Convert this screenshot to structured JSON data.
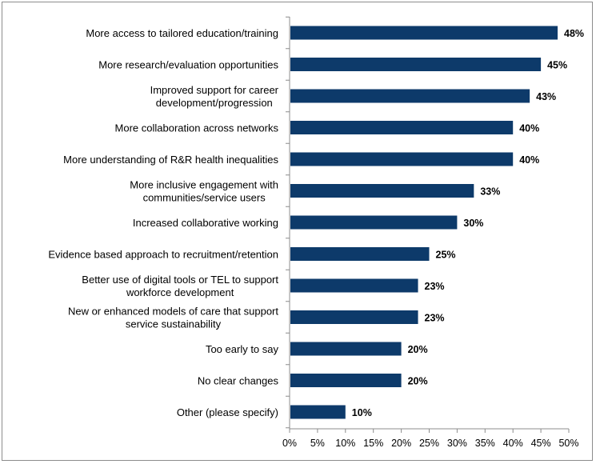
{
  "chart_data": {
    "type": "bar",
    "orientation": "horizontal",
    "categories": [
      [
        "More access to tailored education/training"
      ],
      [
        "More research/evaluation opportunities"
      ],
      [
        "Improved support for career",
        "development/progression"
      ],
      [
        "More collaboration across networks"
      ],
      [
        "More understanding of R&R health inequalities"
      ],
      [
        "More inclusive engagement with",
        "communities/service users"
      ],
      [
        "Increased collaborative working"
      ],
      [
        "Evidence based approach to recruitment/retention"
      ],
      [
        "Better use of digital tools or TEL to support",
        "workforce development"
      ],
      [
        "New or enhanced models of care that support",
        "service sustainability"
      ],
      [
        "Too early to say"
      ],
      [
        "No clear changes"
      ],
      [
        "Other (please specify)"
      ]
    ],
    "values": [
      48,
      45,
      43,
      40,
      40,
      33,
      30,
      25,
      23,
      23,
      20,
      20,
      10
    ],
    "value_labels": [
      "48%",
      "45%",
      "43%",
      "40%",
      "40%",
      "33%",
      "30%",
      "25%",
      "23%",
      "23%",
      "20%",
      "20%",
      "10%"
    ],
    "x_ticks": [
      "0%",
      "5%",
      "10%",
      "15%",
      "20%",
      "25%",
      "30%",
      "35%",
      "40%",
      "45%",
      "50%"
    ],
    "xlim": [
      0,
      50
    ],
    "title": "",
    "xlabel": "",
    "ylabel": "",
    "grid": false,
    "legend": "none",
    "bar_color": "#0d3a6a"
  }
}
